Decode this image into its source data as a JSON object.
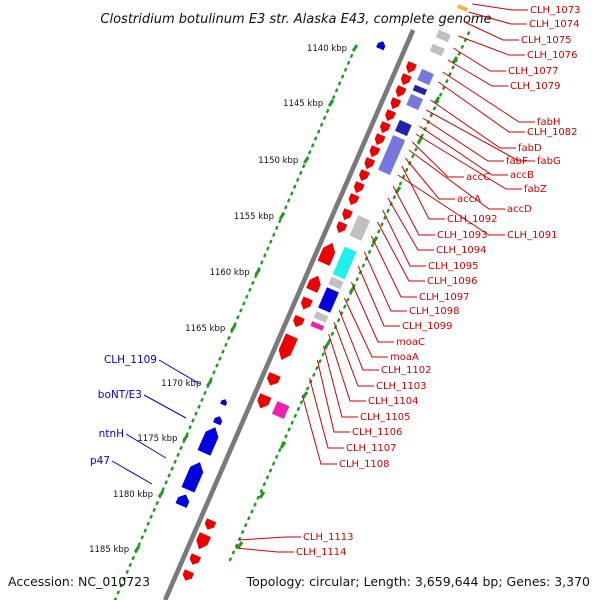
{
  "title": "Clostridium botulinum E3 str. Alaska E43, complete genome",
  "footer": {
    "accession": "Accession: NC_010723",
    "summary": "Topology: circular; Length: 3,659,644 bp; Genes: 3,370"
  },
  "colors": {
    "backbone": "#7a7a7a",
    "gene_red": "#ee0000",
    "gene_blue": "#0000dd",
    "gene_grey": "#c0c0c0",
    "gene_cyan": "#22eeee",
    "gene_magenta": "#ee22aa",
    "gene_purple": "#7777dd",
    "gene_navy": "#2222aa",
    "tick_green": "#229922",
    "label_red": "#cc0000",
    "label_blue": "#0000cc"
  },
  "scale_ticks": [
    "1140 kbp",
    "1145 kbp",
    "1150 kbp",
    "1155 kbp",
    "1160 kbp",
    "1165 kbp",
    "1170 kbp",
    "1175 kbp",
    "1180 kbp",
    "1185 kbp"
  ],
  "right_labels": [
    "CLH_1073",
    "CLH_1074",
    "CLH_1075",
    "CLH_1076",
    "CLH_1077",
    "CLH_1079",
    "fabH",
    "CLH_1082",
    "fabD",
    "fabG",
    "fabF",
    "accB",
    "fabZ",
    "accC",
    "accD",
    "accA",
    "CLH_1092",
    "CLH_1091",
    "CLH_1093",
    "CLH_1094",
    "CLH_1095",
    "CLH_1096",
    "CLH_1097",
    "CLH_1098",
    "CLH_1099",
    "moaC",
    "moaA",
    "CLH_1102",
    "CLH_1103",
    "CLH_1104",
    "CLH_1105",
    "CLH_1106",
    "CLH_1107",
    "CLH_1108",
    "CLH_1113",
    "CLH_1114"
  ],
  "left_labels": [
    "CLH_1109",
    "boNT/E3",
    "ntnH",
    "p47"
  ]
}
